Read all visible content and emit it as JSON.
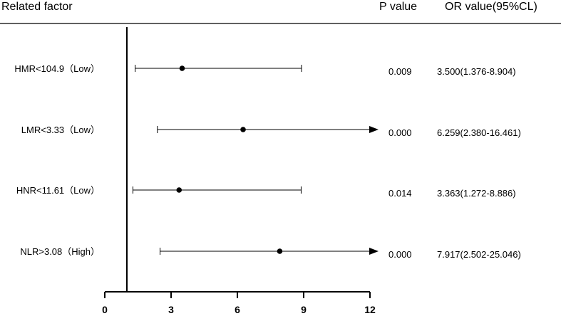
{
  "header": {
    "factor": "Related factor",
    "p_value": "P value",
    "or_value": "OR value(95%CL)"
  },
  "chart_data": {
    "type": "forest",
    "title": "",
    "xlabel": "",
    "ylabel": "",
    "xlim": [
      0,
      12
    ],
    "xticks": [
      "0",
      "3",
      "6",
      "9",
      "12"
    ],
    "reference_line": 1,
    "rows": [
      {
        "label": "HMR<104.9（Low）",
        "p": "0.009",
        "ci_text": "3.500(1.376-8.904)",
        "or": 3.5,
        "low": 1.376,
        "high": 8.904,
        "truncated": false
      },
      {
        "label": "LMR<3.33（Low）",
        "p": "0.000",
        "ci_text": "6.259(2.380-16.461)",
        "or": 6.259,
        "low": 2.38,
        "high": 16.461,
        "truncated": true
      },
      {
        "label": "HNR<11.61（Low）",
        "p": "0.014",
        "ci_text": "3.363(1.272-8.886)",
        "or": 3.363,
        "low": 1.272,
        "high": 8.886,
        "truncated": false
      },
      {
        "label": "NLR>3.08（High）",
        "p": "0.000",
        "ci_text": "7.917(2.502-25.046)",
        "or": 7.917,
        "low": 2.502,
        "high": 25.046,
        "truncated": true
      }
    ]
  }
}
